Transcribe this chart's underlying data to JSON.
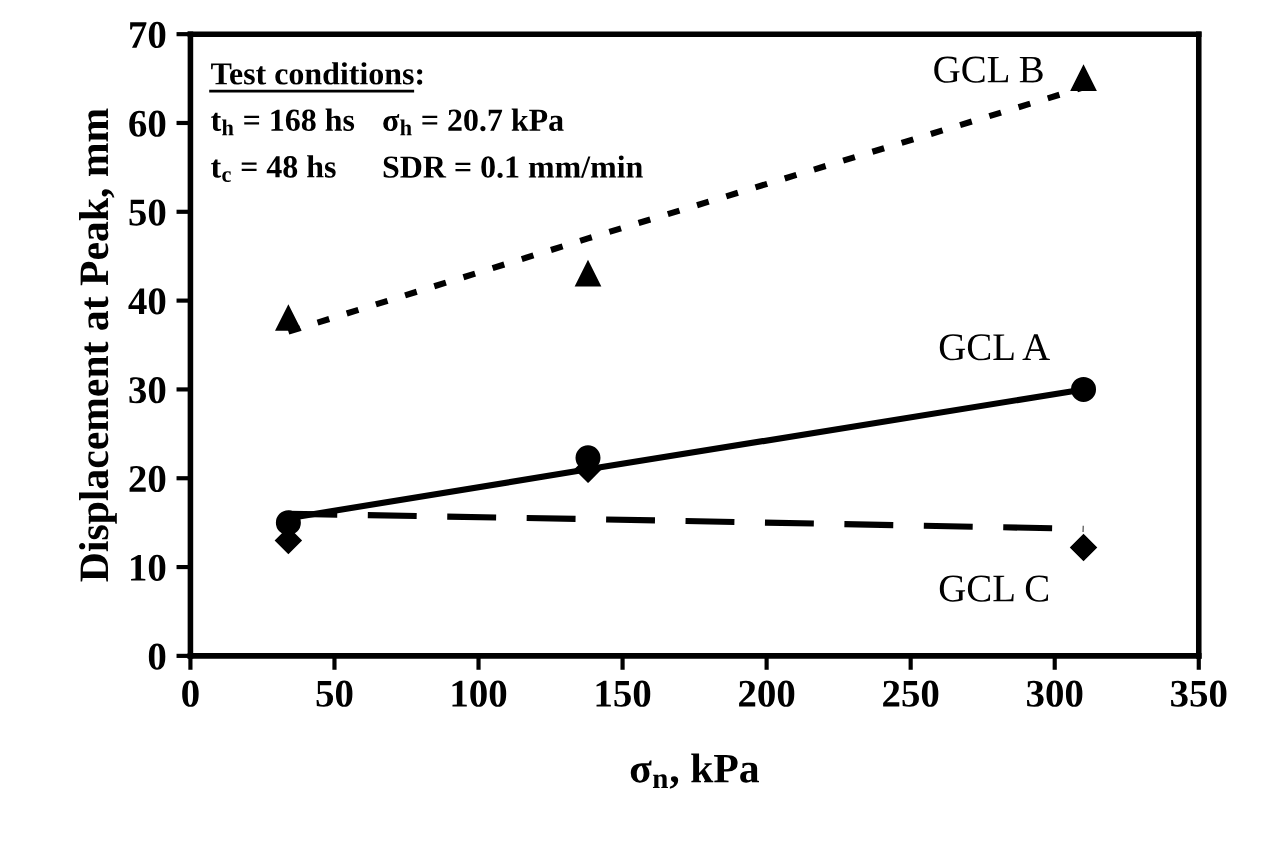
{
  "chart_data": {
    "type": "scatter",
    "xlabel": "σ$_{n}$, kPa",
    "ylabel": "Displacement at Peak, mm",
    "x": [
      34,
      138,
      310
    ],
    "series": [
      {
        "name": "GCL A",
        "color": "#000000",
        "marker": "circle",
        "values": [
          15,
          22.3,
          30
        ]
      },
      {
        "type": "line",
        "color": "#000000",
        "line_style": "solid",
        "marker": "none",
        "values": [
          15.5,
          21,
          30
        ]
      },
      {
        "name": "GCL B",
        "color": "#000000",
        "marker": "triangle",
        "values": [
          38,
          43,
          65
        ]
      },
      {
        "type": "line",
        "color": "#000000",
        "line_style": "dotted",
        "marker": "none",
        "values": [
          36.5,
          47,
          64
        ]
      },
      {
        "name": "GCL C",
        "color": "#000000",
        "marker": "diamond",
        "values": [
          13,
          21,
          12.2
        ]
      },
      {
        "type": "line",
        "color": "#000000",
        "line_style": "dashed",
        "marker": "none",
        "values": [
          16,
          15.4,
          14.3
        ]
      }
    ],
    "xlim": [
      0,
      350
    ],
    "xticks": [
      0,
      50,
      100,
      150,
      200,
      250,
      300,
      350
    ],
    "ylim": [
      0,
      70
    ],
    "yticks": [
      0,
      10,
      20,
      30,
      40,
      50,
      60,
      70
    ],
    "grid": false,
    "legend": false,
    "annotations": [
      "Test conditions:",
      "t$_{h}$ = 168 hs",
      "σ$_{h}$ = 20.7 kPa",
      "t$_{c}$ = 48 hs",
      "SDR = 0.1 mm/min"
    ]
  }
}
